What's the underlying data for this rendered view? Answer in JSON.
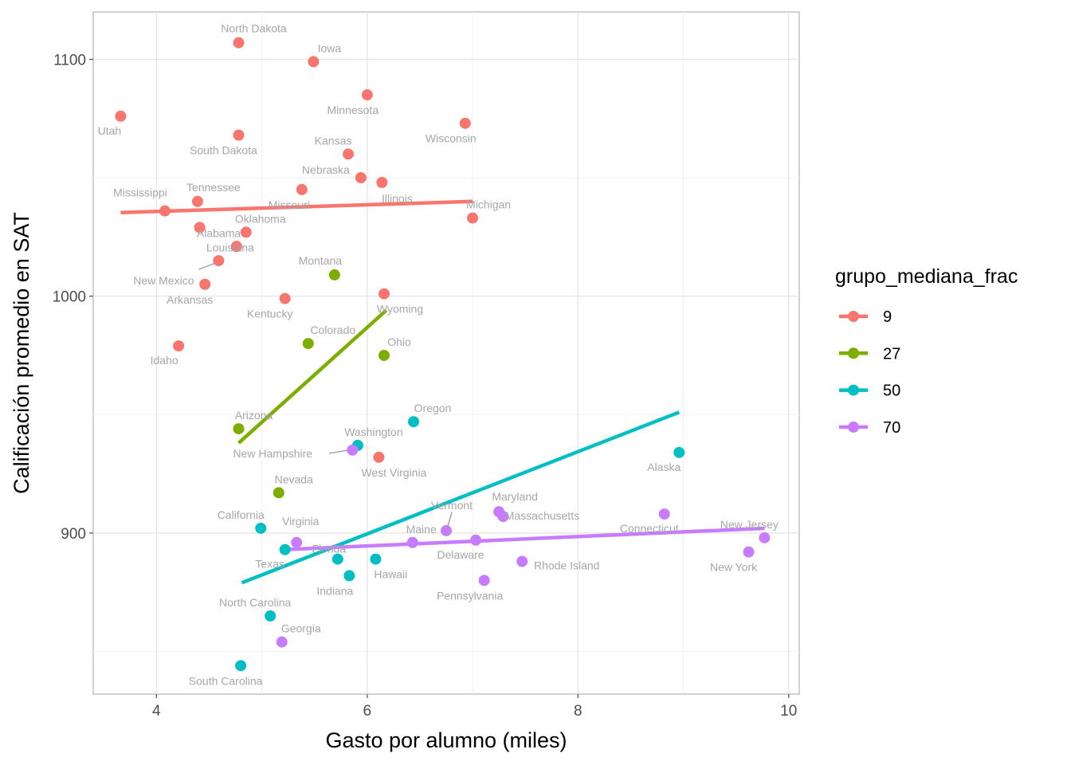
{
  "chart_data": {
    "type": "scatter",
    "xlabel": "Gasto por alumno (miles)",
    "ylabel": "Calificación promedio en SAT",
    "xlim": [
      3.4,
      10.1
    ],
    "ylim": [
      832,
      1120
    ],
    "x_ticks": [
      {
        "value": 4,
        "label": "4"
      },
      {
        "value": 6,
        "label": "6"
      },
      {
        "value": 8,
        "label": "8"
      },
      {
        "value": 10,
        "label": "10"
      }
    ],
    "y_ticks": [
      {
        "value": 900,
        "label": "900"
      },
      {
        "value": 1000,
        "label": "1000"
      },
      {
        "value": 1100,
        "label": "1100"
      }
    ],
    "legend": {
      "title": "grupo_mediana_frac",
      "position": "right",
      "entries": [
        {
          "label": "9",
          "color": "#F8766D"
        },
        {
          "label": "27",
          "color": "#7CAE00"
        },
        {
          "label": "50",
          "color": "#00BFC4"
        },
        {
          "label": "70",
          "color": "#C77CFF"
        }
      ]
    },
    "series": [
      {
        "name": "9",
        "color": "#F8766D",
        "trend": [
          [
            3.66,
            1035.3
          ],
          [
            7.0,
            1040.0
          ]
        ],
        "points": [
          {
            "state": "North Dakota",
            "x": 4.78,
            "y": 1107
          },
          {
            "state": "Iowa",
            "x": 5.49,
            "y": 1099
          },
          {
            "state": "Minnesota",
            "x": 6.0,
            "y": 1085
          },
          {
            "state": "Utah",
            "x": 3.66,
            "y": 1076
          },
          {
            "state": "Wisconsin",
            "x": 6.93,
            "y": 1073
          },
          {
            "state": "South Dakota",
            "x": 4.78,
            "y": 1068
          },
          {
            "state": "Kansas",
            "x": 5.82,
            "y": 1060
          },
          {
            "state": "Nebraska",
            "x": 5.94,
            "y": 1050
          },
          {
            "state": "Illinois",
            "x": 6.14,
            "y": 1048
          },
          {
            "state": "Missouri",
            "x": 5.38,
            "y": 1045
          },
          {
            "state": "Tennessee",
            "x": 4.39,
            "y": 1040
          },
          {
            "state": "Mississippi",
            "x": 4.08,
            "y": 1036
          },
          {
            "state": "Michigan",
            "x": 7.0,
            "y": 1033
          },
          {
            "state": "Alabama",
            "x": 4.41,
            "y": 1029
          },
          {
            "state": "Oklahoma",
            "x": 4.85,
            "y": 1027
          },
          {
            "state": "Louisiana",
            "x": 4.76,
            "y": 1021
          },
          {
            "state": "New Mexico",
            "x": 4.59,
            "y": 1015
          },
          {
            "state": "Arkansas",
            "x": 4.46,
            "y": 1005
          },
          {
            "state": "Kentucky",
            "x": 5.22,
            "y": 999
          },
          {
            "state": "Wyoming",
            "x": 6.16,
            "y": 1001
          },
          {
            "state": "Idaho",
            "x": 4.21,
            "y": 979
          },
          {
            "state": "West Virginia",
            "x": 6.11,
            "y": 932
          }
        ]
      },
      {
        "name": "27",
        "color": "#7CAE00",
        "trend": [
          [
            4.78,
            938
          ],
          [
            6.18,
            994
          ]
        ],
        "points": [
          {
            "state": "Montana",
            "x": 5.69,
            "y": 1009
          },
          {
            "state": "Colorado",
            "x": 5.44,
            "y": 980
          },
          {
            "state": "Ohio",
            "x": 6.16,
            "y": 975
          },
          {
            "state": "Arizona",
            "x": 4.78,
            "y": 944
          },
          {
            "state": "Nevada",
            "x": 5.16,
            "y": 917
          }
        ]
      },
      {
        "name": "50",
        "color": "#00BFC4",
        "trend": [
          [
            4.81,
            879
          ],
          [
            8.96,
            951
          ]
        ],
        "points": [
          {
            "state": "Oregon",
            "x": 6.44,
            "y": 947
          },
          {
            "state": "Washington",
            "x": 5.91,
            "y": 937
          },
          {
            "state": "Alaska",
            "x": 8.96,
            "y": 934
          },
          {
            "state": "California",
            "x": 4.99,
            "y": 902
          },
          {
            "state": "Texas",
            "x": 5.22,
            "y": 893
          },
          {
            "state": "Florida",
            "x": 5.72,
            "y": 889
          },
          {
            "state": "Hawaii",
            "x": 6.08,
            "y": 889
          },
          {
            "state": "Indiana",
            "x": 5.83,
            "y": 882
          },
          {
            "state": "North Carolina",
            "x": 5.08,
            "y": 865
          },
          {
            "state": "South Carolina",
            "x": 4.8,
            "y": 844
          }
        ]
      },
      {
        "name": "70",
        "color": "#C77CFF",
        "trend": [
          [
            5.22,
            893
          ],
          [
            9.77,
            902
          ]
        ],
        "points": [
          {
            "state": "New Hampshire",
            "x": 5.86,
            "y": 935
          },
          {
            "state": "Maryland",
            "x": 7.25,
            "y": 909
          },
          {
            "state": "Massachusetts",
            "x": 7.29,
            "y": 907
          },
          {
            "state": "Connecticut",
            "x": 8.82,
            "y": 908
          },
          {
            "state": "Vermont",
            "x": 6.75,
            "y": 901
          },
          {
            "state": "New Jersey",
            "x": 9.77,
            "y": 898
          },
          {
            "state": "Delaware",
            "x": 7.03,
            "y": 897
          },
          {
            "state": "Maine",
            "x": 6.43,
            "y": 896
          },
          {
            "state": "Virginia",
            "x": 5.33,
            "y": 896
          },
          {
            "state": "New York",
            "x": 9.62,
            "y": 892
          },
          {
            "state": "Rhode Island",
            "x": 7.47,
            "y": 888
          },
          {
            "state": "Pennsylvania",
            "x": 7.11,
            "y": 880
          },
          {
            "state": "Georgia",
            "x": 5.19,
            "y": 854
          }
        ]
      }
    ]
  }
}
